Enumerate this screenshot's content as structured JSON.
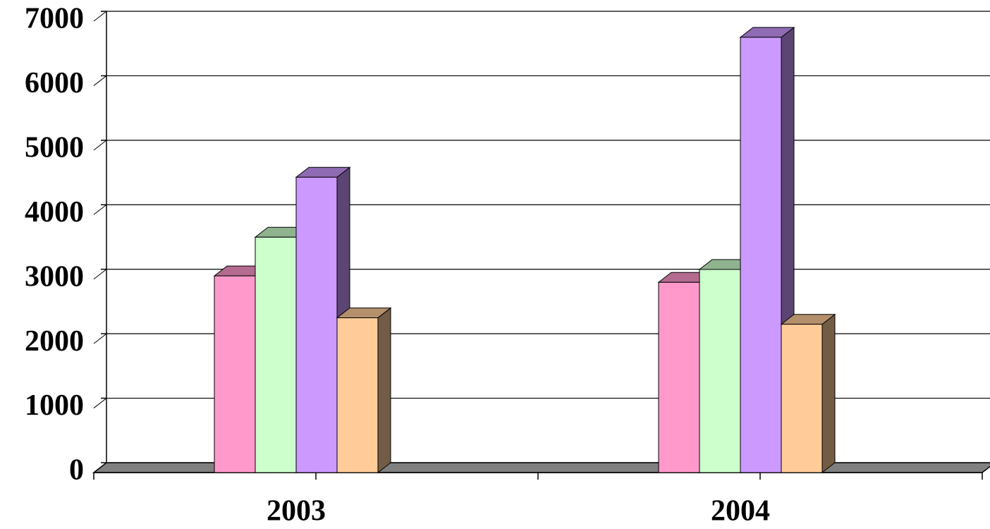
{
  "chart_data": {
    "type": "bar3d",
    "categories": [
      "2003",
      "2004"
    ],
    "series": [
      {
        "color": "#ff99cc",
        "values": [
          3050,
          2950
        ]
      },
      {
        "color": "#ccffcc",
        "values": [
          3650,
          3150
        ]
      },
      {
        "color": "#cc99ff",
        "values": [
          4580,
          6750
        ]
      },
      {
        "color": "#ffcc99",
        "values": [
          2400,
          2300
        ]
      }
    ],
    "ylim": [
      0,
      7000
    ],
    "yticks": [
      0,
      1000,
      2000,
      3000,
      4000,
      5000,
      6000,
      7000
    ],
    "grid": true
  }
}
